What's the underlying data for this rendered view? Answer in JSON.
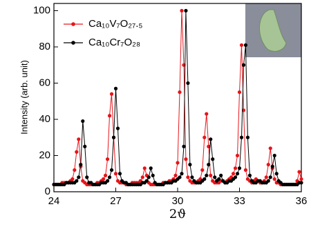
{
  "chart_data": {
    "type": "line",
    "x_label": "2ϑ",
    "y_label": "Intensity (arb. unit)",
    "x": [
      24.0,
      24.1,
      24.2,
      24.3,
      24.4,
      24.5,
      24.6,
      24.7,
      24.8,
      24.9,
      25.0,
      25.1,
      25.2,
      25.3,
      25.4,
      25.5,
      25.6,
      25.7,
      25.8,
      25.9,
      26.0,
      26.1,
      26.2,
      26.3,
      26.4,
      26.5,
      26.6,
      26.7,
      26.8,
      26.9,
      27.0,
      27.1,
      27.2,
      27.3,
      27.4,
      27.5,
      27.6,
      27.7,
      27.8,
      27.9,
      28.0,
      28.1,
      28.2,
      28.3,
      28.4,
      28.5,
      28.6,
      28.7,
      28.8,
      28.9,
      29.0,
      29.1,
      29.2,
      29.3,
      29.4,
      29.5,
      29.6,
      29.7,
      29.8,
      29.9,
      30.0,
      30.1,
      30.2,
      30.3,
      30.4,
      30.5,
      30.6,
      30.7,
      30.8,
      30.9,
      31.0,
      31.1,
      31.2,
      31.3,
      31.4,
      31.5,
      31.6,
      31.7,
      31.8,
      31.9,
      32.0,
      32.1,
      32.2,
      32.3,
      32.4,
      32.5,
      32.6,
      32.7,
      32.8,
      32.9,
      33.0,
      33.1,
      33.2,
      33.3,
      33.4,
      33.5,
      33.6,
      33.7,
      33.8,
      33.9,
      34.0,
      34.1,
      34.2,
      34.3,
      34.4,
      34.5,
      34.6,
      34.7,
      34.8,
      34.9,
      35.0,
      35.1,
      35.2,
      35.3,
      35.4,
      35.5,
      35.6,
      35.7,
      35.8,
      35.9,
      36.0
    ],
    "series": [
      {
        "name": "Ca₁₀V₇O₂₇.₅",
        "color": "#e8141a",
        "values": [
          4,
          4,
          4,
          4,
          5,
          5,
          5,
          5,
          6,
          7,
          12,
          22,
          29,
          14,
          6,
          5,
          4,
          4,
          4,
          4,
          4,
          5,
          5,
          6,
          7,
          9,
          18,
          42,
          54,
          30,
          10,
          6,
          5,
          5,
          5,
          4,
          4,
          4,
          5,
          5,
          5,
          5,
          6,
          8,
          13,
          9,
          5,
          4,
          4,
          4,
          4,
          4,
          4,
          5,
          5,
          5,
          6,
          6,
          7,
          9,
          16,
          55,
          100,
          70,
          18,
          8,
          6,
          5,
          5,
          5,
          6,
          7,
          12,
          30,
          43,
          25,
          9,
          6,
          5,
          5,
          5,
          6,
          6,
          5,
          6,
          7,
          8,
          10,
          13,
          20,
          55,
          81,
          45,
          12,
          7,
          6,
          5,
          6,
          7,
          6,
          5,
          5,
          6,
          8,
          15,
          24,
          13,
          7,
          5,
          5,
          4,
          4,
          4,
          4,
          4,
          4,
          4,
          4,
          6,
          11,
          7
        ]
      },
      {
        "name": "Ca₁₀Cr₇O₂₈",
        "color": "#000000",
        "values": [
          4,
          4,
          4,
          4,
          4,
          4,
          5,
          5,
          5,
          5,
          5,
          6,
          8,
          15,
          39,
          25,
          8,
          5,
          5,
          4,
          4,
          4,
          4,
          5,
          5,
          5,
          6,
          8,
          12,
          30,
          57,
          35,
          10,
          6,
          5,
          5,
          4,
          4,
          4,
          4,
          4,
          4,
          4,
          5,
          5,
          6,
          8,
          13,
          9,
          5,
          4,
          4,
          4,
          4,
          5,
          5,
          5,
          5,
          6,
          6,
          7,
          8,
          10,
          25,
          100,
          60,
          15,
          8,
          6,
          5,
          5,
          5,
          6,
          7,
          9,
          15,
          29,
          18,
          8,
          6,
          7,
          9,
          6,
          5,
          5,
          6,
          6,
          7,
          8,
          10,
          13,
          30,
          70,
          81,
          30,
          9,
          6,
          5,
          5,
          6,
          6,
          5,
          5,
          5,
          6,
          8,
          14,
          20,
          10,
          6,
          5,
          4,
          4,
          4,
          4,
          4,
          4,
          4,
          4,
          5,
          5
        ]
      }
    ],
    "xlim": [
      24,
      36
    ],
    "xticks": [
      24,
      27,
      30,
      33,
      36
    ],
    "ylim": [
      0,
      104
    ],
    "yticks": [
      0,
      20,
      40,
      60,
      80,
      100
    ],
    "legend": "upper-left"
  }
}
